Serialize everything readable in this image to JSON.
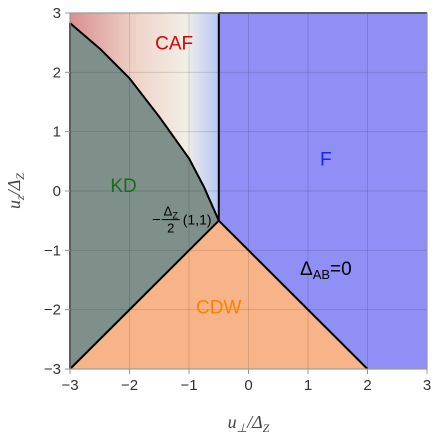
{
  "chart_data": {
    "type": "area",
    "title": "",
    "xlabel": "u⊥/ΔZ",
    "ylabel": "uz/ΔZ",
    "xlim": [
      -3,
      3
    ],
    "ylim": [
      -3,
      3
    ],
    "xticks": [
      "−3",
      "−2",
      "−1",
      "0",
      "1",
      "2",
      "3"
    ],
    "yticks": [
      "−3",
      "−2",
      "−1",
      "0",
      "1",
      "2",
      "3"
    ],
    "grid": true,
    "regions": [
      {
        "name": "CAF",
        "color": "#e00000",
        "fill": "gradient red-to-blue"
      },
      {
        "name": "KD",
        "color": "#1a6b1a",
        "fill": "#7f8f89"
      },
      {
        "name": "F",
        "color": "#2020ff",
        "fill": "#8f8ff5"
      },
      {
        "name": "CDW",
        "color": "#ff7f00",
        "fill": "#f7b489"
      }
    ],
    "boundaries": {
      "kd_caf": [
        [
          -3,
          2.83
        ],
        [
          -2.5,
          2.4
        ],
        [
          -2,
          1.9
        ],
        [
          -1.5,
          1.25
        ],
        [
          -1,
          0.55
        ],
        [
          -0.75,
          0.07
        ],
        [
          -0.5,
          -0.5
        ]
      ],
      "vertical": [
        [
          -0.5,
          -0.5
        ],
        [
          -0.5,
          3
        ]
      ],
      "kd_cdw": [
        [
          -3,
          -3
        ],
        [
          -0.5,
          -0.5
        ]
      ],
      "cdw_f": [
        [
          -0.5,
          -0.5
        ],
        [
          2,
          -3
        ]
      ],
      "kd_left_edge": [
        [
          -3,
          -3
        ],
        [
          -3,
          2.83
        ]
      ],
      "top_edge": [
        [
          -0.5,
          3
        ],
        [
          3,
          3
        ]
      ]
    },
    "annotations": [
      {
        "label": "ΔAB=0",
        "x": 1.3,
        "y": -1.3
      },
      {
        "label": "−ΔZ/2(1,1)",
        "x": -0.5,
        "y": -0.5
      }
    ]
  }
}
